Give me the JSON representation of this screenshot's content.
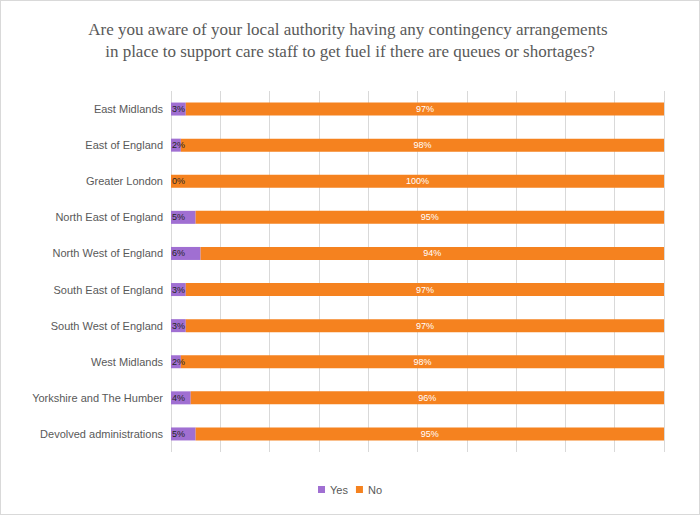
{
  "chart_data": {
    "type": "bar",
    "orientation": "horizontal",
    "stacked": true,
    "title": "Are you aware of your local authority having any contingency arrangements in place to support care staff to get fuel if there are queues or shortages?",
    "categories": [
      "East Midlands",
      "East of England",
      "Greater London",
      "North East of England",
      "North West of England",
      "South East of England",
      "South West of England",
      "West Midlands",
      "Yorkshire and The Humber",
      "Devolved administrations"
    ],
    "series": [
      {
        "name": "Yes",
        "color": "#a06fd2",
        "values": [
          3,
          2,
          0,
          5,
          6,
          3,
          3,
          2,
          4,
          5
        ],
        "value_labels": [
          "3%",
          "2%",
          "0%",
          "5%",
          "6%",
          "3%",
          "3%",
          "2%",
          "4%",
          "5%"
        ]
      },
      {
        "name": "No",
        "color": "#f5821f",
        "values": [
          97,
          98,
          100,
          95,
          94,
          97,
          97,
          98,
          96,
          95
        ],
        "value_labels": [
          "97%",
          "98%",
          "100%",
          "95%",
          "94%",
          "97%",
          "97%",
          "98%",
          "96%",
          "95%"
        ]
      }
    ],
    "xlim": [
      0,
      100
    ],
    "xticks": [
      0,
      10,
      20,
      30,
      40,
      50,
      60,
      70,
      80,
      90,
      100
    ],
    "grid": true,
    "legend": "bottom",
    "data_labels": true,
    "tick_labels": "y"
  }
}
